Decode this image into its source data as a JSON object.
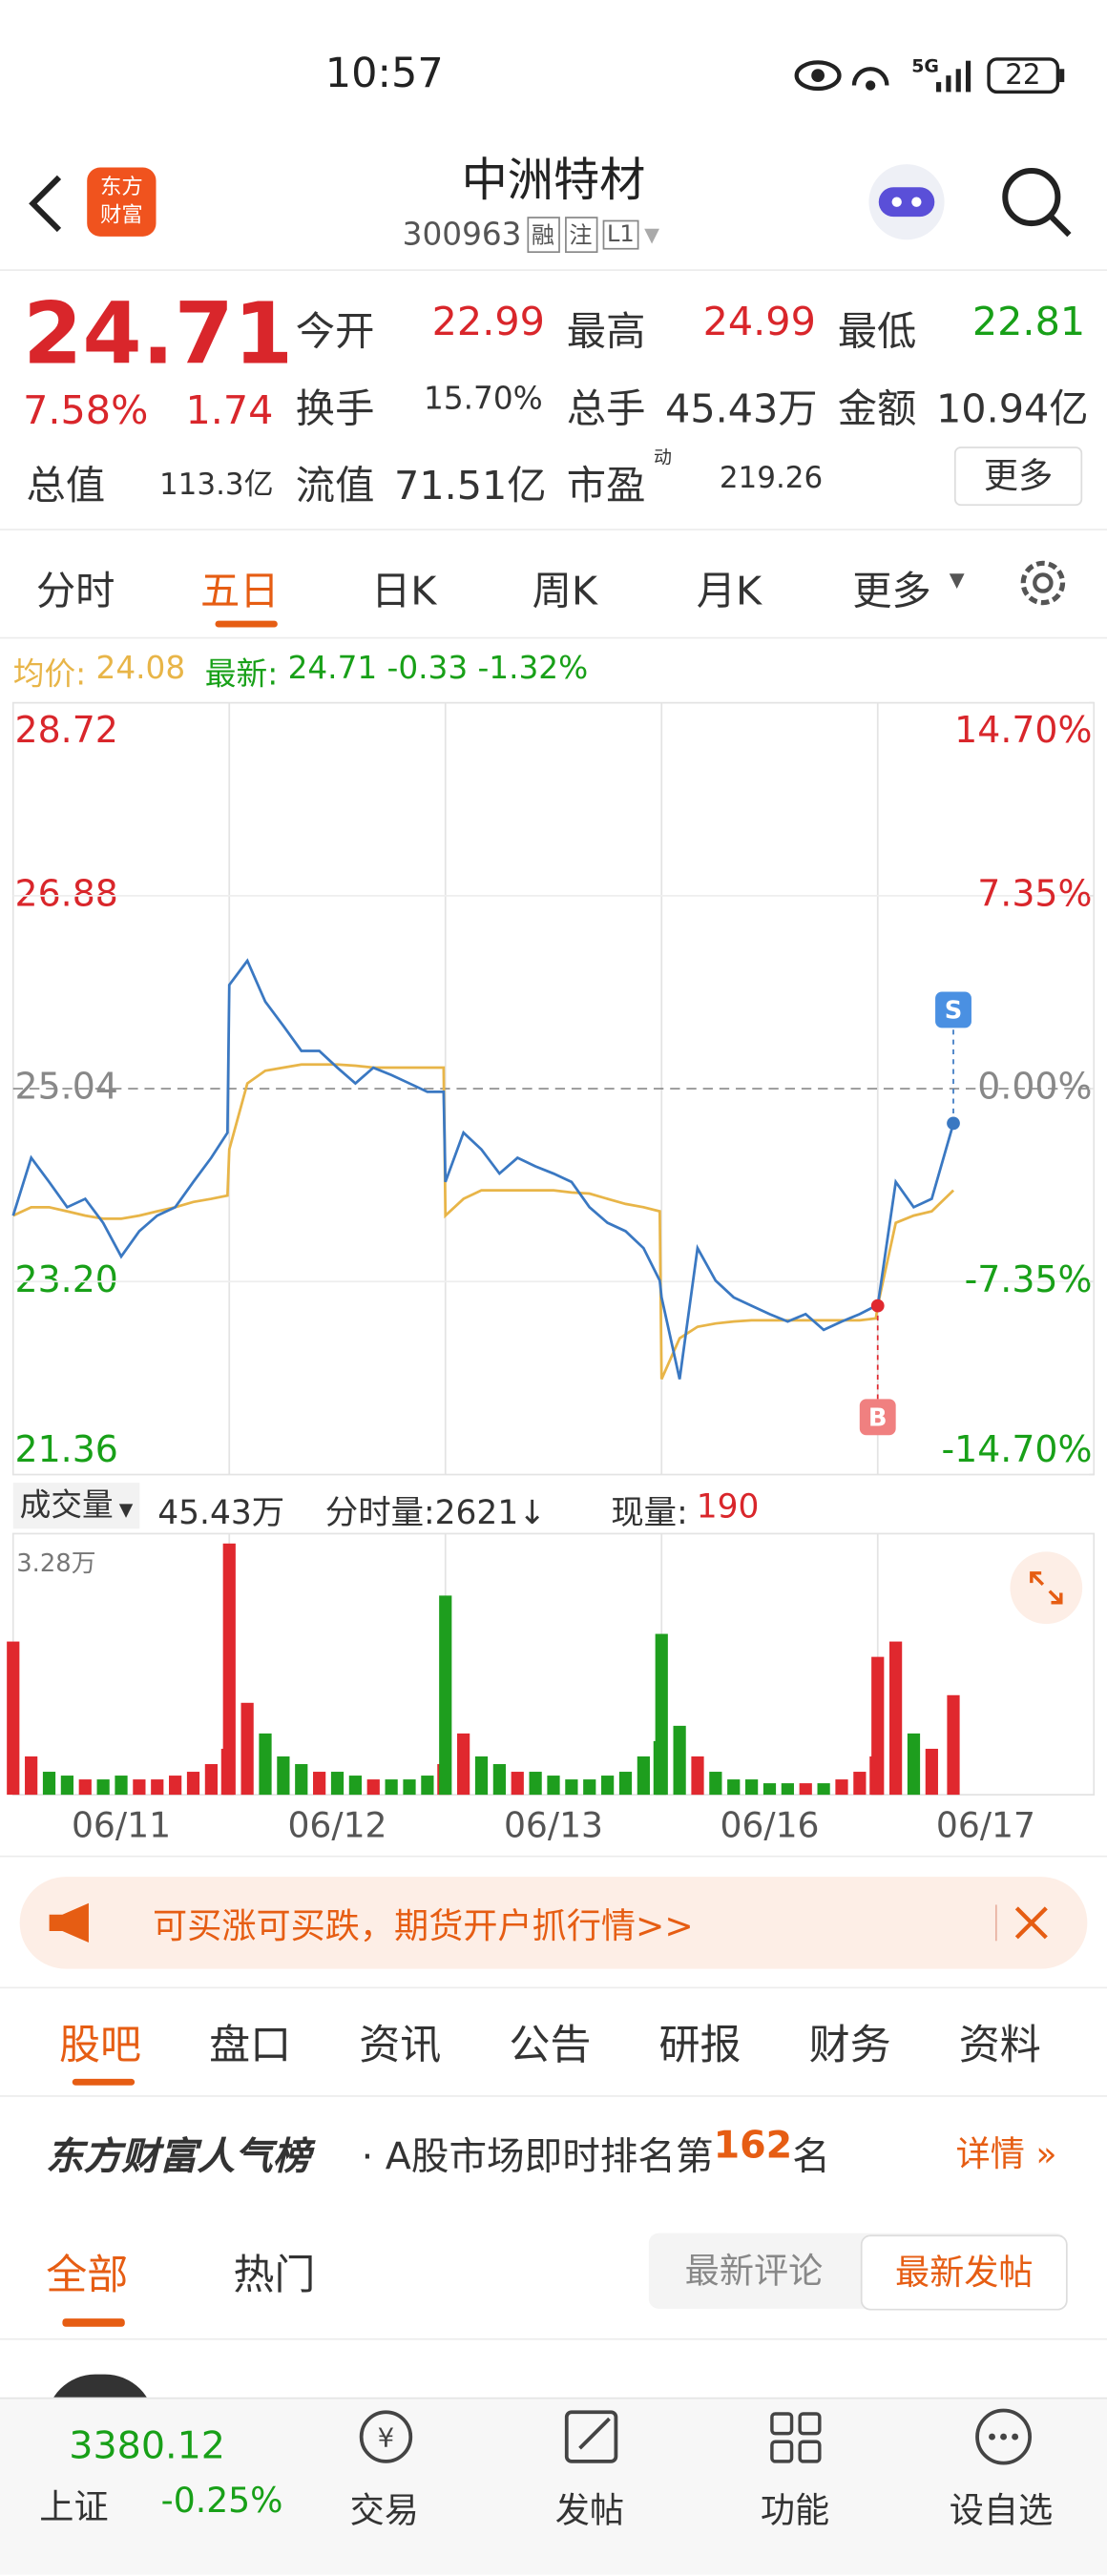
{
  "status_bar": {
    "time": "10:57",
    "network": "5G",
    "battery": "22"
  },
  "header": {
    "title": "中洲特材",
    "code": "300963",
    "tags": [
      "融",
      "注",
      "L1"
    ]
  },
  "quote": {
    "price": "24.71",
    "change_pct": "7.58%",
    "change": "1.74",
    "fields": [
      {
        "label": "今开",
        "value": "22.99"
      },
      {
        "label": "最高",
        "value": "24.99"
      },
      {
        "label": "最低",
        "value": "22.81"
      },
      {
        "label": "换手",
        "value": "15.70%"
      },
      {
        "label": "总手",
        "value": "45.43万"
      },
      {
        "label": "金额",
        "value": "10.94亿"
      },
      {
        "label": "总值",
        "value": "113.3亿"
      },
      {
        "label": "流值",
        "value": "71.51亿"
      },
      {
        "label": "市盈",
        "value": "219.26"
      }
    ],
    "pe_note": "动",
    "more": "更多"
  },
  "tabs": [
    "分时",
    "五日",
    "日K",
    "周K",
    "月K",
    "更多"
  ],
  "info": {
    "avg_label": "均价:",
    "avg": "24.08",
    "latest_label": "最新:",
    "latest": "24.71",
    "diff": "-0.33",
    "diff_pct": "-1.32%"
  },
  "chart_data": {
    "type": "line",
    "categories": [
      "06/11",
      "06/12",
      "06/13",
      "06/16",
      "06/17"
    ],
    "xlim": [
      0,
      1200
    ],
    "x": [
      0,
      20,
      40,
      60,
      80,
      100,
      120,
      140,
      160,
      180,
      200,
      220,
      238,
      240,
      260,
      280,
      300,
      320,
      340,
      360,
      380,
      400,
      420,
      440,
      460,
      478,
      480,
      500,
      520,
      540,
      560,
      580,
      600,
      620,
      640,
      660,
      680,
      700,
      718,
      720,
      740,
      760,
      780,
      800,
      820,
      840,
      860,
      880,
      900,
      920,
      940,
      958,
      960,
      980,
      1000,
      1020,
      1044
    ],
    "ylim": [
      21.36,
      28.72
    ],
    "yticks": [
      28.72,
      26.88,
      25.04,
      {
        "value": 23.2,
        "label": "23.20"
      },
      21.36
    ],
    "y2lim": [
      -14.7,
      14.7
    ],
    "y2ticks": [
      {
        "value": 14.7,
        "label": "14.70%"
      },
      {
        "value": 7.35,
        "label": "7.35%"
      },
      {
        "value": 0,
        "label": "0.00%"
      },
      {
        "value": -7.35,
        "label": "-7.35%"
      },
      {
        "value": -14.7,
        "label": "-14.70%"
      }
    ],
    "series": [
      {
        "color": "#3a78c2",
        "values": [
          23.83,
          24.38,
          24.15,
          23.91,
          23.99,
          23.76,
          23.44,
          23.68,
          23.83,
          23.91,
          24.15,
          24.38,
          24.62,
          26.03,
          26.26,
          25.87,
          25.64,
          25.4,
          25.4,
          25.24,
          25.09,
          25.24,
          25.17,
          25.09,
          25.01,
          25.01,
          24.15,
          24.62,
          24.46,
          24.23,
          24.38,
          24.3,
          24.23,
          24.15,
          23.91,
          23.76,
          23.68,
          23.52,
          23.21,
          23.05,
          22.27,
          23.52,
          23.21,
          23.05,
          22.97,
          22.89,
          22.82,
          22.89,
          22.74,
          22.82,
          22.89,
          22.97,
          22.97,
          24.15,
          23.91,
          23.99,
          24.71
        ]
      },
      {
        "color": "#e8b548",
        "values": [
          23.83,
          23.91,
          23.91,
          23.87,
          23.83,
          23.8,
          23.8,
          23.83,
          23.87,
          23.91,
          23.96,
          23.99,
          24.02,
          24.46,
          25.09,
          25.21,
          25.24,
          25.27,
          25.27,
          25.27,
          25.26,
          25.24,
          25.24,
          25.24,
          25.24,
          25.24,
          23.83,
          23.99,
          24.07,
          24.07,
          24.07,
          24.07,
          24.07,
          24.05,
          24.04,
          23.99,
          23.94,
          23.91,
          23.87,
          22.27,
          22.66,
          22.77,
          22.8,
          22.82,
          22.83,
          22.83,
          22.83,
          22.83,
          22.83,
          22.83,
          22.83,
          22.85,
          22.97,
          23.76,
          23.83,
          23.87,
          24.07
        ]
      }
    ],
    "markers": [
      "S",
      "B"
    ],
    "volume": {
      "label": "成交量",
      "total": "45.43万",
      "tick_label": "分时量:2621↓",
      "now_label": "现量:",
      "now": "190",
      "max_label": "3.28万",
      "ylim": [
        0,
        3.28
      ],
      "up_color": "#e0282e",
      "down_color": "#1e9e1e",
      "values": [
        2.0,
        0.5,
        0.3,
        0.25,
        0.2,
        0.2,
        0.25,
        0.2,
        0.2,
        0.25,
        0.3,
        0.4,
        0.6,
        3.28,
        1.2,
        0.8,
        0.5,
        0.4,
        0.3,
        0.3,
        0.25,
        0.2,
        0.2,
        0.2,
        0.25,
        0.4,
        2.6,
        0.8,
        0.5,
        0.4,
        0.3,
        0.3,
        0.25,
        0.2,
        0.2,
        0.25,
        0.3,
        0.5,
        0.7,
        2.1,
        0.9,
        0.5,
        0.3,
        0.2,
        0.2,
        0.15,
        0.15,
        0.15,
        0.15,
        0.2,
        0.3,
        0.5,
        1.8,
        2.0,
        0.8,
        0.6,
        1.3
      ]
    }
  },
  "banner": "可买涨可买跌，期货开户抓行情>>",
  "section_tabs": [
    "股吧",
    "盘口",
    "资讯",
    "公告",
    "研报",
    "财务",
    "资料"
  ],
  "ranking": {
    "title": "东方财富人气榜",
    "text": "· A股市场即时排名第",
    "rank": "162",
    "suffix": "名",
    "detail": "详情"
  },
  "filter_tabs": [
    "全部",
    "热门"
  ],
  "sort_buttons": [
    "最新评论",
    "最新发帖"
  ],
  "bottom_bar": {
    "index_value": "3380.12",
    "index_name": "上证",
    "index_change": "-0.25%",
    "items": [
      "交易",
      "发帖",
      "功能",
      "设自选"
    ]
  }
}
